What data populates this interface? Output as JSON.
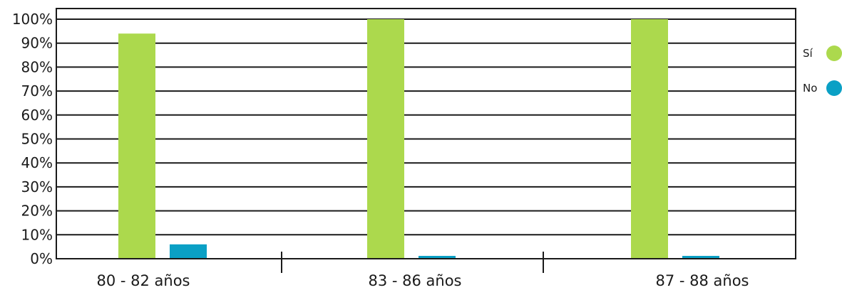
{
  "chart_data": {
    "type": "bar",
    "categories": [
      "80 - 82 años",
      "83 - 86 años",
      "87 - 88 años"
    ],
    "series": [
      {
        "name": "Sí",
        "color": "#acd94d",
        "values": [
          94,
          100,
          100
        ]
      },
      {
        "name": "No",
        "color": "#0aa0c5",
        "values": [
          6,
          1,
          1
        ]
      }
    ],
    "yticks": [
      "0%",
      "10%",
      "20%",
      "30%",
      "40%",
      "50%",
      "60%",
      "70%",
      "80%",
      "90%",
      "100%"
    ],
    "ylim": [
      0,
      100
    ],
    "grid": true,
    "legend": "right",
    "title": "",
    "xlabel": "",
    "ylabel": ""
  }
}
